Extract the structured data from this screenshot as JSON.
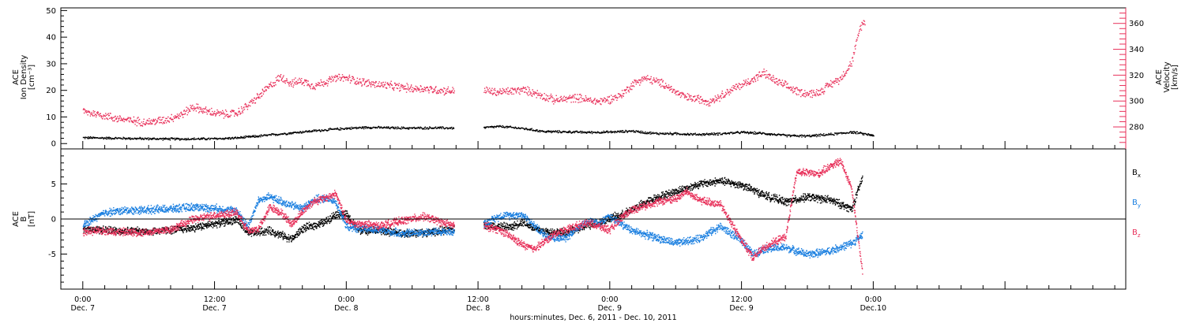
{
  "chart_data": [
    {
      "type": "scatter",
      "ylabel_left": [
        "ACE",
        "Ion Density",
        "[cm⁻³]"
      ],
      "ylabel_right": [
        "ACE",
        "Velocity",
        "[km/s]"
      ],
      "ylim_left": [
        -2,
        51
      ],
      "ylim_right": [
        263,
        372
      ],
      "yticks_left": [
        0,
        10,
        20,
        30,
        40,
        50
      ],
      "yticks_right": [
        280,
        300,
        320,
        340,
        360
      ],
      "series": [
        {
          "axis": "left",
          "color": "#000000",
          "points": [
            [
              0,
              2.4
            ],
            [
              3,
              2.2
            ],
            [
              6,
              2.0
            ],
            [
              9,
              1.9
            ],
            [
              12,
              2.0
            ],
            [
              14,
              2.3
            ],
            [
              16,
              3.0
            ],
            [
              18,
              3.8
            ],
            [
              20,
              4.6
            ],
            [
              22,
              5.3
            ],
            [
              24,
              5.9
            ],
            [
              26,
              6.3
            ],
            [
              28,
              6.1
            ],
            [
              30,
              6.0
            ],
            [
              32,
              6.1
            ],
            [
              33.8,
              6.0
            ],
            [
              36.5,
              6.2
            ],
            [
              38,
              6.6
            ],
            [
              40,
              5.9
            ],
            [
              42,
              4.7
            ],
            [
              44,
              4.6
            ],
            [
              46,
              4.4
            ],
            [
              48,
              4.5
            ],
            [
              50,
              4.9
            ],
            [
              52,
              4.0
            ],
            [
              54,
              3.9
            ],
            [
              56,
              3.6
            ],
            [
              58,
              3.9
            ],
            [
              60,
              4.4
            ],
            [
              62,
              4.0
            ],
            [
              64,
              3.2
            ],
            [
              66,
              3.0
            ],
            [
              68,
              3.6
            ],
            [
              70,
              4.5
            ],
            [
              72,
              3.3
            ]
          ]
        },
        {
          "axis": "right",
          "color": "#e8305a",
          "points": [
            [
              0,
              292
            ],
            [
              1.5,
              290
            ],
            [
              3,
              287
            ],
            [
              4.5,
              285
            ],
            [
              6,
              284
            ],
            [
              7.5,
              286
            ],
            [
              9,
              290
            ],
            [
              10,
              296
            ],
            [
              11,
              293
            ],
            [
              12,
              291
            ],
            [
              13,
              290
            ],
            [
              14,
              291
            ],
            [
              15,
              297
            ],
            [
              16,
              304
            ],
            [
              17,
              312
            ],
            [
              18,
              319
            ],
            [
              19,
              314
            ],
            [
              20,
              316
            ],
            [
              21,
              312
            ],
            [
              22,
              315
            ],
            [
              23,
              318
            ],
            [
              24,
              318
            ],
            [
              25,
              316
            ],
            [
              26,
              314
            ],
            [
              27,
              313
            ],
            [
              28,
              312
            ],
            [
              29,
              311
            ],
            [
              30,
              310
            ],
            [
              31,
              310
            ],
            [
              32,
              309
            ],
            [
              33.8,
              308
            ],
            [
              36.5,
              309
            ],
            [
              37.5,
              307
            ],
            [
              39,
              308
            ],
            [
              40,
              309
            ],
            [
              41,
              307
            ],
            [
              42,
              304
            ],
            [
              43,
              301
            ],
            [
              44,
              302
            ],
            [
              45,
              303
            ],
            [
              46,
              301
            ],
            [
              47,
              300
            ],
            [
              48,
              302
            ],
            [
              49,
              305
            ],
            [
              50,
              313
            ],
            [
              51,
              318
            ],
            [
              52,
              316
            ],
            [
              53,
              313
            ],
            [
              54,
              307
            ],
            [
              55,
              303
            ],
            [
              56,
              302
            ],
            [
              57,
              300
            ],
            [
              58,
              304
            ],
            [
              59,
              309
            ],
            [
              60,
              313
            ],
            [
              61,
              317
            ],
            [
              62,
              322
            ],
            [
              63,
              316
            ],
            [
              64,
              312
            ],
            [
              65,
              308
            ],
            [
              66,
              306
            ],
            [
              67,
              307
            ],
            [
              68,
              313
            ],
            [
              69,
              318
            ],
            [
              70,
              330
            ],
            [
              70.8,
              358
            ],
            [
              71.2,
              362
            ]
          ]
        }
      ]
    },
    {
      "type": "scatter",
      "ylabel": [
        "ACE",
        "B",
        "[nT]"
      ],
      "ylim": [
        -10,
        10
      ],
      "yticks": [
        -5,
        0,
        5
      ],
      "hline": 0,
      "legend_position": "right",
      "series": [
        {
          "name": "Bx",
          "color": "#000000",
          "points": [
            [
              0,
              -1.3
            ],
            [
              3,
              -1.6
            ],
            [
              6,
              -1.7
            ],
            [
              8,
              -1.5
            ],
            [
              10,
              -1.2
            ],
            [
              12,
              -0.6
            ],
            [
              14,
              0.0
            ],
            [
              15,
              -2.0
            ],
            [
              16,
              -1.8
            ],
            [
              17,
              -1.6
            ],
            [
              18,
              -2.2
            ],
            [
              19,
              -2.8
            ],
            [
              20,
              -1.3
            ],
            [
              22,
              -0.4
            ],
            [
              23,
              0.8
            ],
            [
              24,
              0.7
            ],
            [
              25,
              -1.5
            ],
            [
              27,
              -1.6
            ],
            [
              29,
              -2.0
            ],
            [
              31,
              -1.9
            ],
            [
              33.8,
              -1.4
            ],
            [
              36.5,
              -0.7
            ],
            [
              37.5,
              -0.9
            ],
            [
              39,
              -1.1
            ],
            [
              40,
              -0.3
            ],
            [
              41,
              -1.2
            ],
            [
              42,
              -1.7
            ],
            [
              43,
              -1.8
            ],
            [
              44,
              -1.9
            ],
            [
              45,
              -1.4
            ],
            [
              46,
              -0.8
            ],
            [
              47,
              -0.5
            ],
            [
              48,
              0.2
            ],
            [
              49,
              0.6
            ],
            [
              50,
              1.5
            ],
            [
              52,
              3.0
            ],
            [
              54,
              4.0
            ],
            [
              56,
              5.0
            ],
            [
              58,
              5.5
            ],
            [
              60,
              4.9
            ],
            [
              62,
              3.5
            ],
            [
              64,
              2.5
            ],
            [
              66,
              3.2
            ],
            [
              68,
              2.8
            ],
            [
              70,
              1.5
            ],
            [
              71,
              6.0
            ]
          ]
        },
        {
          "name": "By",
          "color": "#1a7fe0",
          "points": [
            [
              0,
              -0.8
            ],
            [
              2,
              1.0
            ],
            [
              4,
              1.3
            ],
            [
              6,
              1.4
            ],
            [
              8,
              1.5
            ],
            [
              10,
              1.8
            ],
            [
              12,
              1.6
            ],
            [
              14,
              1.2
            ],
            [
              15,
              -1.0
            ],
            [
              16,
              2.8
            ],
            [
              17,
              3.2
            ],
            [
              18,
              2.6
            ],
            [
              19,
              2.0
            ],
            [
              20,
              1.6
            ],
            [
              21,
              2.8
            ],
            [
              22,
              3.0
            ],
            [
              23,
              2.5
            ],
            [
              24,
              -1.0
            ],
            [
              25,
              -1.3
            ],
            [
              27,
              -1.5
            ],
            [
              29,
              -2.0
            ],
            [
              31,
              -1.8
            ],
            [
              33.8,
              -1.7
            ],
            [
              36.5,
              -0.6
            ],
            [
              38,
              0.5
            ],
            [
              40,
              0.7
            ],
            [
              42,
              -2.2
            ],
            [
              43,
              -2.7
            ],
            [
              44,
              -2.6
            ],
            [
              45,
              -1.2
            ],
            [
              46,
              -0.2
            ],
            [
              47,
              -0.5
            ],
            [
              48,
              0.4
            ],
            [
              50,
              -1.6
            ],
            [
              52,
              -2.5
            ],
            [
              54,
              -3.4
            ],
            [
              56,
              -2.8
            ],
            [
              58,
              -1.0
            ],
            [
              60,
              -3.0
            ],
            [
              61,
              -5.0
            ],
            [
              62,
              -4.2
            ],
            [
              64,
              -4.0
            ],
            [
              66,
              -5.0
            ],
            [
              68,
              -4.5
            ],
            [
              70,
              -3.4
            ],
            [
              71,
              -2.2
            ]
          ]
        },
        {
          "name": "Bz",
          "color": "#e8305a",
          "points": [
            [
              0,
              -1.7
            ],
            [
              2,
              -1.6
            ],
            [
              4,
              -1.8
            ],
            [
              6,
              -1.8
            ],
            [
              8,
              -1.4
            ],
            [
              10,
              0.0
            ],
            [
              11,
              0.3
            ],
            [
              12,
              0.6
            ],
            [
              14,
              1.0
            ],
            [
              15,
              -1.6
            ],
            [
              16,
              -1.3
            ],
            [
              17,
              1.8
            ],
            [
              18,
              1.0
            ],
            [
              19,
              -0.7
            ],
            [
              20,
              1.2
            ],
            [
              21,
              2.6
            ],
            [
              22,
              3.0
            ],
            [
              23,
              3.7
            ],
            [
              24,
              -0.3
            ],
            [
              25,
              -0.6
            ],
            [
              27,
              -0.9
            ],
            [
              29,
              -0.2
            ],
            [
              31,
              0.4
            ],
            [
              33.8,
              -0.9
            ],
            [
              36.5,
              -0.9
            ],
            [
              38,
              -1.5
            ],
            [
              40,
              -3.6
            ],
            [
              41,
              -4.2
            ],
            [
              42,
              -3.2
            ],
            [
              43,
              -2.0
            ],
            [
              44,
              -1.4
            ],
            [
              45,
              -0.9
            ],
            [
              46,
              -0.5
            ],
            [
              47,
              -1.0
            ],
            [
              48,
              -1.5
            ],
            [
              49,
              0.3
            ],
            [
              50,
              1.4
            ],
            [
              52,
              2.4
            ],
            [
              54,
              3.0
            ],
            [
              55,
              4.0
            ],
            [
              56,
              2.8
            ],
            [
              58,
              2.2
            ],
            [
              60,
              -3.0
            ],
            [
              61,
              -5.5
            ],
            [
              62,
              -4.0
            ],
            [
              63,
              -3.2
            ],
            [
              64,
              -2.4
            ],
            [
              65,
              6.8
            ],
            [
              67,
              6.5
            ],
            [
              68,
              7.6
            ],
            [
              69,
              8.3
            ],
            [
              70,
              4.5
            ],
            [
              71,
              -7.8
            ]
          ]
        }
      ]
    }
  ],
  "x_axis": {
    "range_hours": [
      -2,
      95
    ],
    "ticks": [
      {
        "h": 0,
        "time": "0:00",
        "day": "Dec. 7"
      },
      {
        "h": 12,
        "time": "12:00",
        "day": "Dec. 7"
      },
      {
        "h": 24,
        "time": "0:00",
        "day": "Dec. 8"
      },
      {
        "h": 36,
        "time": "12:00",
        "day": "Dec. 8"
      },
      {
        "h": 48,
        "time": "0:00",
        "day": "Dec. 9"
      },
      {
        "h": 60,
        "time": "12:00",
        "day": "Dec. 9"
      },
      {
        "h": 72,
        "time": "0:00",
        "day": "Dec.10"
      }
    ],
    "title": "hours:minutes, Dec.  6, 2011 - Dec. 10, 2011"
  }
}
